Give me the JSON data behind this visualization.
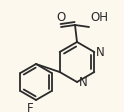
{
  "background_color": "#fdf8ee",
  "bond_color": "#2a2a2a",
  "text_color": "#2a2a2a",
  "figsize": [
    1.24,
    1.12
  ],
  "dpi": 100,
  "xlim": [
    0,
    124
  ],
  "ylim": [
    0,
    112
  ]
}
